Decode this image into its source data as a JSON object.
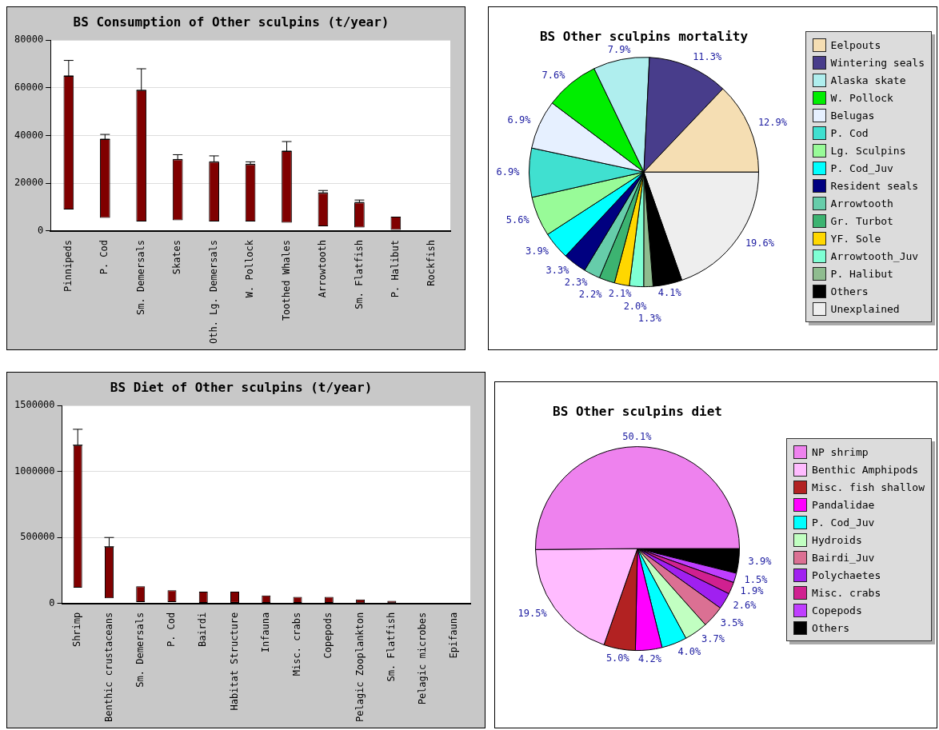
{
  "chart_data": [
    {
      "type": "bar",
      "title": "BS Consumption of Other sculpins (t/year)",
      "categories": [
        "Pinnipeds",
        "P. Cod",
        "Sm. Demersals",
        "Skates",
        "Oth. Lg. Demersals",
        "W. Pollock",
        "Toothed Whales",
        "Arrowtooth",
        "Sm. Flatfish",
        "P. Halibut",
        "Rockfish"
      ],
      "values": [
        56000,
        33000,
        55000,
        25500,
        25000,
        24000,
        30000,
        14000,
        10500,
        5500,
        0
      ],
      "base": [
        9000,
        5500,
        4000,
        4500,
        4000,
        4000,
        3500,
        2000,
        1500,
        500,
        null
      ],
      "errors": [
        [
          65000,
          71500
        ],
        [
          38500,
          40500
        ],
        [
          59000,
          68000
        ],
        [
          30000,
          32000
        ],
        [
          29000,
          31500
        ],
        [
          28000,
          29000
        ],
        [
          33500,
          37500
        ],
        [
          16000,
          17000
        ],
        [
          12000,
          13000
        ],
        null,
        null
      ],
      "color": "#800000",
      "ylim": [
        0,
        80000
      ],
      "yticks": [
        0,
        20000,
        40000,
        60000,
        80000
      ],
      "grid": "y"
    },
    {
      "type": "pie",
      "title": "BS Other sculpins mortality",
      "categories": [
        "Eelpouts",
        "Wintering seals",
        "Alaska skate",
        "W. Pollock",
        "Belugas",
        "P. Cod",
        "Lg. Sculpins",
        "P. Cod_Juv",
        "Resident seals",
        "Arrowtooth",
        "Gr. Turbot",
        "YF. Sole",
        "Arrowtooth_Juv",
        "P. Halibut",
        "Others",
        "Unexplained"
      ],
      "values": [
        12.9,
        11.3,
        7.9,
        7.6,
        6.9,
        6.9,
        5.6,
        3.9,
        3.3,
        2.3,
        2.2,
        2.1,
        2.0,
        1.3,
        4.1,
        19.6
      ],
      "value_labels": [
        "12.9%",
        "11.3%",
        "7.9%",
        "7.6%",
        "6.9%",
        "6.9%",
        "5.6%",
        "3.9%",
        "3.3%",
        "2.3%",
        "2.2%",
        "2.1%",
        "2.0%",
        "1.3%",
        "4.1%",
        "19.6%"
      ],
      "colors": [
        "#f5deb3",
        "#483d8b",
        "#afeeee",
        "#00ee00",
        "#e6f0ff",
        "#40e0d0",
        "#98fb98",
        "#00ffff",
        "#000080",
        "#66cdaa",
        "#3cb371",
        "#ffd700",
        "#7fffd4",
        "#8fbc8f",
        "#000000",
        "#eeeeee"
      ],
      "legend": "right"
    },
    {
      "type": "bar",
      "title": "BS Diet of Other sculpins (t/year)",
      "categories": [
        "Shrimp",
        "Benthic crustaceans",
        "Sm. Demersals",
        "P. Cod",
        "Bairdi",
        "Habitat Structure",
        "Infauna",
        "Misc. crabs",
        "Copepods",
        "Pelagic Zooplankton",
        "Sm. Flatfish",
        "Pelagic microbes",
        "Epifauna"
      ],
      "values": [
        1080000,
        390000,
        120000,
        90000,
        85000,
        85000,
        55000,
        45000,
        45000,
        30000,
        20000,
        0,
        0
      ],
      "base": [
        120000,
        40000,
        10000,
        10000,
        5000,
        5000,
        5000,
        5000,
        5000,
        0,
        0,
        null,
        null
      ],
      "errors": [
        [
          1200000,
          1320000
        ],
        [
          430000,
          500000
        ],
        null,
        null,
        null,
        null,
        null,
        null,
        null,
        null,
        null,
        null,
        null
      ],
      "color": "#800000",
      "ylim": [
        0,
        1500000
      ],
      "yticks": [
        0,
        500000,
        1000000,
        1500000
      ],
      "grid": "y"
    },
    {
      "type": "pie",
      "title": "BS Other sculpins diet",
      "categories": [
        "NP shrimp",
        "Benthic Amphipods",
        "Misc. fish shallow",
        "Pandalidae",
        "P. Cod_Juv",
        "Hydroids",
        "Bairdi_Juv",
        "Polychaetes",
        "Misc. crabs",
        "Copepods",
        "Others"
      ],
      "values": [
        50.1,
        19.5,
        5.0,
        4.2,
        4.0,
        3.7,
        3.5,
        2.6,
        1.9,
        1.5,
        3.9
      ],
      "value_labels": [
        "50.1%",
        "19.5%",
        "5.0%",
        "4.2%",
        "4.0%",
        "3.7%",
        "3.5%",
        "2.6%",
        "1.9%",
        "1.5%",
        "3.9%"
      ],
      "colors": [
        "#ee82ee",
        "#ffbbff",
        "#b22222",
        "#ff00ff",
        "#00ffff",
        "#c1ffc1",
        "#db7093",
        "#a020f0",
        "#d02090",
        "#bf3eff",
        "#000000"
      ],
      "legend": "right"
    }
  ]
}
